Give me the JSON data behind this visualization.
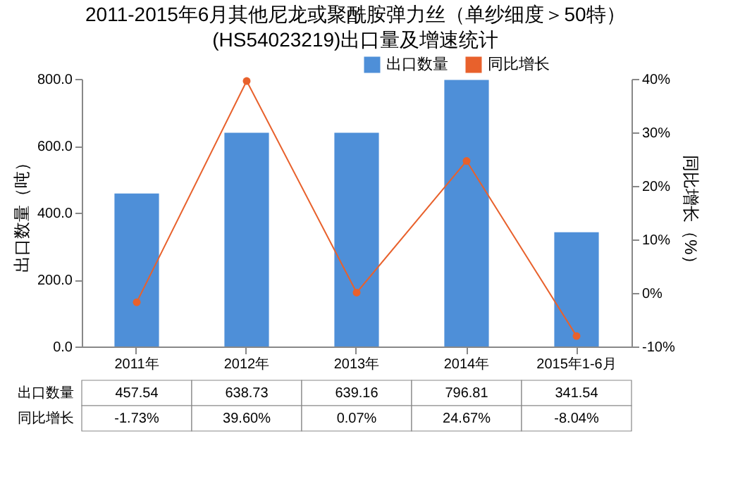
{
  "chart_data": {
    "type": "bar",
    "title": "2011-2015年6月其他尼龙或聚酰胺弹力丝（单纱细度＞50特）(HS54023219)出口量及增速统计",
    "categories": [
      "2011年",
      "2012年",
      "2013年",
      "2014年",
      "2015年1-6月"
    ],
    "ylabel": "出口数量（吨）",
    "y2label": "同比增长（%）",
    "series": [
      {
        "name": "出口数量",
        "color": "#4e8fd8",
        "values": [
          457.54,
          638.73,
          639.16,
          796.81,
          341.54
        ],
        "value_labels": [
          "457.54",
          "638.73",
          "639.16",
          "796.81",
          "341.54"
        ]
      },
      {
        "name": "同比增长",
        "type": "line",
        "axis": "y2",
        "color": "#e8612c",
        "marker": "circle",
        "values": [
          -1.73,
          39.6,
          0.07,
          24.67,
          -8.04
        ],
        "value_labels": [
          "-1.73%",
          "39.60%",
          "0.07%",
          "24.67%",
          "-8.04%"
        ]
      }
    ],
    "ylim": [
      0,
      800
    ],
    "yticks": [
      {
        "value": 0,
        "label": "0.0"
      },
      {
        "value": 200,
        "label": "200.0"
      },
      {
        "value": 400,
        "label": "400.0"
      },
      {
        "value": 600,
        "label": "600.0"
      },
      {
        "value": 800,
        "label": "800.0"
      }
    ],
    "y2lim": [
      -10,
      40
    ],
    "y2ticks": [
      {
        "value": -10,
        "label": "-10%"
      },
      {
        "value": 0,
        "label": "0%"
      },
      {
        "value": 10,
        "label": "10%"
      },
      {
        "value": 20,
        "label": "20%"
      },
      {
        "value": 30,
        "label": "30%"
      },
      {
        "value": 40,
        "label": "40%"
      }
    ],
    "legend": "top right",
    "grid": false
  }
}
